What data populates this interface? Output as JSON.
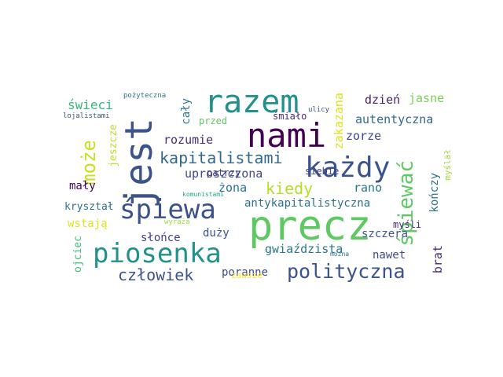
{
  "words": [
    {
      "text": "precz",
      "color": "#5ec962"
    },
    {
      "text": "jest",
      "color": "#3b528b"
    },
    {
      "text": "nami",
      "color": "#440154"
    },
    {
      "text": "razem",
      "color": "#21918c"
    },
    {
      "text": "śpiewa",
      "color": "#3b528b"
    },
    {
      "text": "piosenka",
      "color": "#21918c"
    },
    {
      "text": "każdy",
      "color": "#3b528b"
    },
    {
      "text": "polityczna",
      "color": "#3b528b"
    },
    {
      "text": "śpiewać",
      "color": "#5ec962"
    },
    {
      "text": "kapitalistami",
      "color": "#31688e"
    },
    {
      "text": "może",
      "color": "#c8e020"
    },
    {
      "text": "człowiek",
      "color": "#3b528b"
    },
    {
      "text": "kiedy",
      "color": "#b5de2b"
    },
    {
      "text": "autentyczna",
      "color": "#31688e"
    },
    {
      "text": "antykapitalistyczna",
      "color": "#2c728e"
    },
    {
      "text": "gwiaździsta",
      "color": "#2a788e"
    },
    {
      "text": "uproszczona",
      "color": "#3e4a89"
    },
    {
      "text": "dzień",
      "color": "#481f70"
    },
    {
      "text": "jasne",
      "color": "#7ad151"
    },
    {
      "text": "zakazana",
      "color": "#dde318"
    },
    {
      "text": "świeci",
      "color": "#35b779"
    },
    {
      "text": "rozumie",
      "color": "#472d7b"
    },
    {
      "text": "zorze",
      "color": "#3e4a89"
    },
    {
      "text": "rano",
      "color": "#2a788e"
    },
    {
      "text": "żona",
      "color": "#2c728e"
    },
    {
      "text": "słońce",
      "color": "#433e85"
    },
    {
      "text": "duży",
      "color": "#3b528b"
    },
    {
      "text": "szczera",
      "color": "#3b528b"
    },
    {
      "text": "nawet",
      "color": "#3e4a89"
    },
    {
      "text": "poranne",
      "color": "#3e4a89"
    },
    {
      "text": "kończy",
      "color": "#2c728e"
    },
    {
      "text": "brat",
      "color": "#482878"
    },
    {
      "text": "mały",
      "color": "#440154"
    },
    {
      "text": "wstają",
      "color": "#dde318"
    },
    {
      "text": "kryształ",
      "color": "#2c728e"
    },
    {
      "text": "cały",
      "color": "#2a788e"
    },
    {
      "text": "przed",
      "color": "#5ec962"
    },
    {
      "text": "śmiało",
      "color": "#482878"
    },
    {
      "text": "patrzy",
      "color": "#433e85"
    },
    {
      "text": "siebie",
      "color": "#414487"
    },
    {
      "text": "myśli",
      "color": "#472d7b"
    },
    {
      "text": "jeszcze",
      "color": "#bddf26"
    },
    {
      "text": "ojciec",
      "color": "#3fbc73"
    },
    {
      "text": "myślał",
      "color": "#a0da39"
    },
    {
      "text": "pożyteczna",
      "color": "#2c728e"
    },
    {
      "text": "lojalistami",
      "color": "#3b528b"
    },
    {
      "text": "ulicy",
      "color": "#3b528b"
    },
    {
      "text": "komunistami",
      "color": "#22a884"
    },
    {
      "text": "wyraża",
      "color": "#a0da39"
    },
    {
      "text": "mozna",
      "color": "#2c728e"
    },
    {
      "text": "zawsze",
      "color": "#fde725"
    }
  ]
}
